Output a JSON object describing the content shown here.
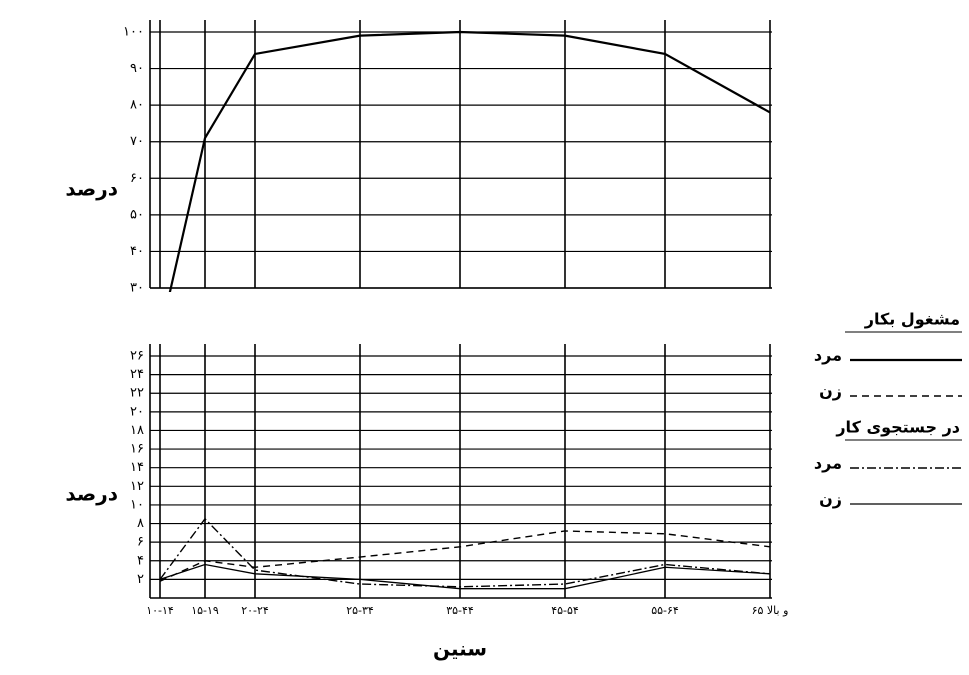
{
  "chart_data": [
    {
      "type": "line",
      "y_label": "درصد",
      "ylim": [
        30,
        100
      ],
      "yticks": [
        {
          "value": 30,
          "label": "۳۰"
        },
        {
          "value": 40,
          "label": "۴۰"
        },
        {
          "value": 50,
          "label": "۵۰"
        },
        {
          "value": 60,
          "label": "۶۰"
        },
        {
          "value": 70,
          "label": "۷۰"
        },
        {
          "value": 80,
          "label": "۸۰"
        },
        {
          "value": 90,
          "label": "۹۰"
        },
        {
          "value": 100,
          "label": "۱۰۰"
        }
      ],
      "grid": true,
      "series": [
        {
          "name": "مرد",
          "color": "#000000",
          "line_style": "solid-thick",
          "values": [
            17,
            71,
            94,
            99,
            100,
            99,
            94,
            78
          ]
        }
      ]
    },
    {
      "type": "line",
      "y_label": "درصد",
      "x_label": "سنین",
      "categories": [
        "۱۰-۱۴",
        "۱۵-۱۹",
        "۲۰-۲۴",
        "۲۵-۳۴",
        "۳۵-۴۴",
        "۴۵-۵۴",
        "۵۵-۶۴",
        "۶۵ و بالا"
      ],
      "ylim": [
        0,
        26
      ],
      "yticks": [
        {
          "value": 2,
          "label": "۲"
        },
        {
          "value": 4,
          "label": "۴"
        },
        {
          "value": 6,
          "label": "۶"
        },
        {
          "value": 8,
          "label": "۸"
        },
        {
          "value": 10,
          "label": "۱۰"
        },
        {
          "value": 12,
          "label": "۱۲"
        },
        {
          "value": 14,
          "label": "۱۴"
        },
        {
          "value": 16,
          "label": "۱۶"
        },
        {
          "value": 18,
          "label": "۱۸"
        },
        {
          "value": 20,
          "label": "۲۰"
        },
        {
          "value": 22,
          "label": "۲۲"
        },
        {
          "value": 24,
          "label": "۲۴"
        },
        {
          "value": 26,
          "label": "۲۶"
        }
      ],
      "grid": true,
      "series": [
        {
          "name": "زن",
          "color": "#000000",
          "line_style": "dashed",
          "values": [
            1.8,
            4,
            3.3,
            4.4,
            5.5,
            7.2,
            6.9,
            5.5
          ]
        },
        {
          "name": "مرد",
          "color": "#000000",
          "line_style": "dashdot",
          "values": [
            2,
            8.5,
            3,
            1.5,
            1.2,
            1.5,
            3.6,
            2.6
          ]
        },
        {
          "name": "زن",
          "color": "#000000",
          "line_style": "solid-thin",
          "values": [
            2,
            3.6,
            2.6,
            2,
            1,
            1,
            3.3,
            2.6
          ]
        }
      ]
    }
  ],
  "legend_groups": [
    "مشغول بکار",
    "در جستجوی کار"
  ]
}
